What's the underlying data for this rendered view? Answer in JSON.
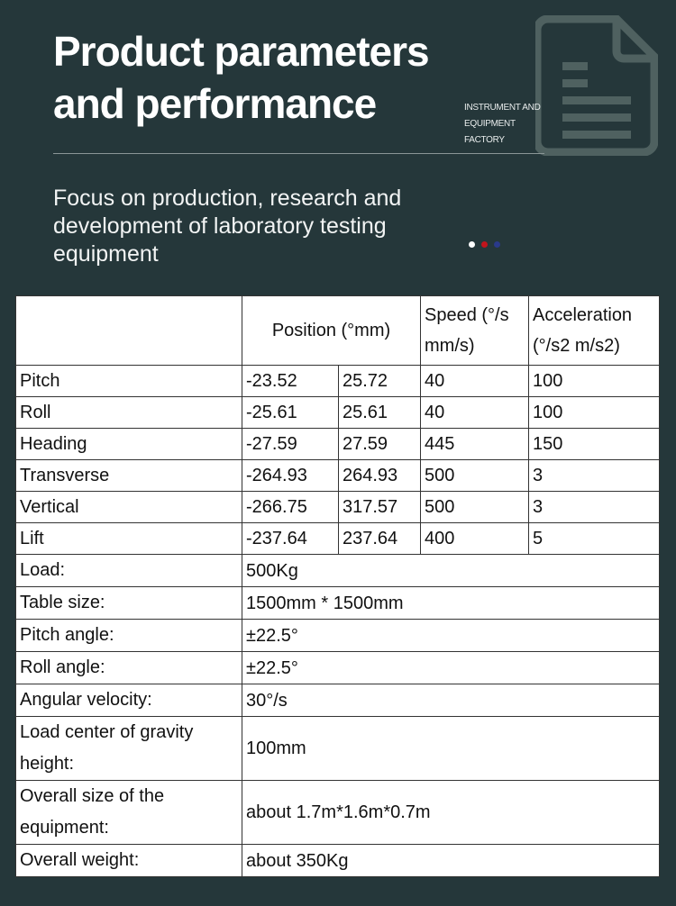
{
  "header": {
    "title_line1": "Product parameters",
    "title_line2": "and performance",
    "tagline": [
      "INSTRUMENT AND",
      "EQUIPMENT",
      "FACTORY"
    ],
    "subtitle": "Focus on production, research and development of laboratory testing equipment",
    "icon": "document-icon",
    "dot_colors": [
      "#ffffff",
      "#c0141c",
      "#2a3a8a"
    ]
  },
  "table": {
    "headers": {
      "position": "Position (°mm)",
      "speed": "Speed (°/s mm/s)",
      "acceleration": "Acceleration (°/s2 m/s2)"
    },
    "axis_rows": [
      [
        "Pitch",
        "-23.52",
        "25.72",
        "40",
        "100"
      ],
      [
        "Roll",
        "-25.61",
        "25.61",
        "40",
        "100"
      ],
      [
        "Heading",
        "-27.59",
        "27.59",
        "445",
        "150"
      ],
      [
        "Transverse",
        "-264.93",
        "264.93",
        "500",
        "3"
      ],
      [
        "Vertical",
        "-266.75",
        "317.57",
        "500",
        "3"
      ],
      [
        "Lift",
        "-237.64",
        "237.64",
        "400",
        "5"
      ]
    ],
    "spec_rows": [
      [
        "Load:",
        "500Kg"
      ],
      [
        "Table size:",
        "1500mm * 1500mm"
      ],
      [
        "Pitch angle:",
        "±22.5°"
      ],
      [
        "Roll angle:",
        "±22.5°"
      ],
      [
        "Angular velocity:",
        "30°/s"
      ],
      [
        "Load center of gravity height:",
        "100mm"
      ],
      [
        "Overall size of the equipment:",
        "about 1.7m*1.6m*0.7m"
      ],
      [
        "Overall weight:",
        "about 350Kg"
      ]
    ]
  }
}
